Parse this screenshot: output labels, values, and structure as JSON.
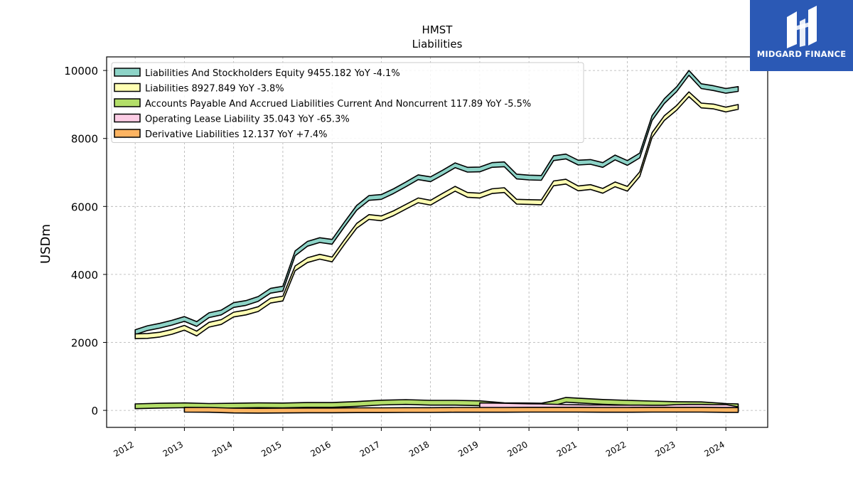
{
  "brand": {
    "name": "MIDGARD FINANCE",
    "logo_icon": "midgard-logo-icon",
    "background": "#2b59b5"
  },
  "chart_data": {
    "type": "area",
    "title": "HMST",
    "subtitle": "Liabilities",
    "ylabel": "USDm",
    "xlabel": "",
    "ylim": [
      -500,
      10400
    ],
    "xlim": [
      2011.42,
      2024.85
    ],
    "yticks": [
      0,
      2000,
      4000,
      6000,
      8000,
      10000
    ],
    "xticks": [
      "2012",
      "2013",
      "2014",
      "2015",
      "2016",
      "2017",
      "2018",
      "2019",
      "2020",
      "2021",
      "2022",
      "2023",
      "2024"
    ],
    "grid": true,
    "legend_position": "top-left",
    "series": [
      {
        "name": "Liabilities And Stockholders Equity",
        "legend": "Liabilities And Stockholders Equity  9455.182 YoY -4.1%",
        "color": "#8dd3c7",
        "x": [
          2012.0,
          2012.25,
          2012.5,
          2012.75,
          2013.0,
          2013.25,
          2013.5,
          2013.75,
          2014.0,
          2014.25,
          2014.5,
          2014.75,
          2015.0,
          2015.25,
          2015.5,
          2015.75,
          2016.0,
          2016.25,
          2016.5,
          2016.75,
          2017.0,
          2017.25,
          2017.5,
          2017.75,
          2018.0,
          2018.25,
          2018.5,
          2018.75,
          2019.0,
          2019.25,
          2019.5,
          2019.75,
          2020.0,
          2020.25,
          2020.5,
          2020.75,
          2021.0,
          2021.25,
          2021.5,
          2021.75,
          2022.0,
          2022.25,
          2022.5,
          2022.75,
          2023.0,
          2023.25,
          2023.5,
          2023.75,
          2024.0,
          2024.25
        ],
        "values": [
          2300,
          2420,
          2490,
          2580,
          2690,
          2540,
          2800,
          2880,
          3100,
          3160,
          3280,
          3520,
          3580,
          4620,
          4900,
          5010,
          4960,
          5470,
          5960,
          6250,
          6280,
          6450,
          6650,
          6860,
          6800,
          7000,
          7210,
          7080,
          7090,
          7220,
          7240,
          6880,
          6850,
          6840,
          7420,
          7470,
          7290,
          7310,
          7220,
          7440,
          7280,
          7500,
          8600,
          9100,
          9450,
          9930,
          9540,
          9480,
          9400,
          9455.182
        ]
      },
      {
        "name": "Liabilities",
        "legend": "Liabilities  8927.849 YoY -3.8%",
        "color": "#ffffb3",
        "x": [
          2012.0,
          2012.25,
          2012.5,
          2012.75,
          2013.0,
          2013.25,
          2013.5,
          2013.75,
          2014.0,
          2014.25,
          2014.5,
          2014.75,
          2015.0,
          2015.25,
          2015.5,
          2015.75,
          2016.0,
          2016.25,
          2016.5,
          2016.75,
          2017.0,
          2017.25,
          2017.5,
          2017.75,
          2018.0,
          2018.25,
          2018.5,
          2018.75,
          2019.0,
          2019.25,
          2019.5,
          2019.75,
          2020.0,
          2020.25,
          2020.5,
          2020.75,
          2021.0,
          2021.25,
          2021.5,
          2021.75,
          2022.0,
          2022.25,
          2022.5,
          2022.75,
          2023.0,
          2023.25,
          2023.5,
          2023.75,
          2024.0,
          2024.25
        ],
        "values": [
          2180,
          2190,
          2230,
          2310,
          2430,
          2260,
          2520,
          2600,
          2820,
          2880,
          2980,
          3230,
          3290,
          4180,
          4420,
          4520,
          4440,
          4950,
          5430,
          5690,
          5650,
          5800,
          5990,
          6180,
          6110,
          6320,
          6520,
          6340,
          6320,
          6450,
          6480,
          6140,
          6130,
          6120,
          6680,
          6730,
          6530,
          6570,
          6460,
          6650,
          6520,
          6950,
          8100,
          8600,
          8900,
          9300,
          8970,
          8940,
          8850,
          8927.849
        ]
      },
      {
        "name": "Accounts Payable And Accrued Liabilities Current And Noncurrent",
        "legend": "Accounts Payable And Accrued Liabilities Current And Noncurrent  117.89 YoY -5.5%",
        "color": "#b3de69",
        "x": [
          2012.0,
          2012.5,
          2013.0,
          2013.5,
          2014.0,
          2014.5,
          2015.0,
          2015.5,
          2016.0,
          2016.5,
          2017.0,
          2017.5,
          2018.0,
          2018.5,
          2019.0,
          2019.5,
          2020.0,
          2020.25,
          2020.5,
          2020.75,
          2021.0,
          2021.5,
          2022.0,
          2022.5,
          2023.0,
          2023.5,
          2024.0,
          2024.25
        ],
        "values": [
          120,
          140,
          150,
          130,
          140,
          150,
          145,
          160,
          160,
          190,
          230,
          245,
          225,
          225,
          210,
          150,
          145,
          140,
          210,
          310,
          290,
          250,
          225,
          205,
          185,
          180,
          130,
          117.89
        ]
      },
      {
        "name": "Operating Lease Liability",
        "legend": "Operating Lease Liability  35.043 YoY -65.3%",
        "color": "#fccde5",
        "x": [
          2019.0,
          2019.25,
          2019.5,
          2019.75,
          2020.0,
          2020.25,
          2020.5,
          2020.75,
          2021.0,
          2021.25,
          2021.5,
          2021.75,
          2022.0,
          2022.25,
          2022.5,
          2022.75,
          2023.0,
          2023.25,
          2023.5,
          2023.75,
          2024.0,
          2024.25
        ],
        "values": [
          150,
          145,
          140,
          130,
          125,
          120,
          110,
          100,
          95,
          90,
          90,
          85,
          85,
          85,
          80,
          80,
          100,
          105,
          105,
          100,
          101,
          35.043
        ]
      },
      {
        "name": "Derivative Liabilities",
        "legend": "Derivative Liabilities  12.137 YoY +7.4%",
        "color": "#fdb462",
        "x": [
          2013.0,
          2013.5,
          2014.0,
          2014.5,
          2015.0,
          2015.5,
          2016.0,
          2016.5,
          2017.0,
          2017.5,
          2018.0,
          2018.5,
          2019.0,
          2019.5,
          2020.0,
          2020.5,
          2021.0,
          2021.5,
          2022.0,
          2022.5,
          2023.0,
          2023.5,
          2024.0,
          2024.25
        ],
        "values": [
          20,
          15,
          -5,
          -10,
          -5,
          0,
          0,
          5,
          5,
          10,
          10,
          15,
          15,
          15,
          20,
          20,
          20,
          15,
          15,
          20,
          20,
          20,
          11,
          12.137
        ]
      }
    ]
  }
}
